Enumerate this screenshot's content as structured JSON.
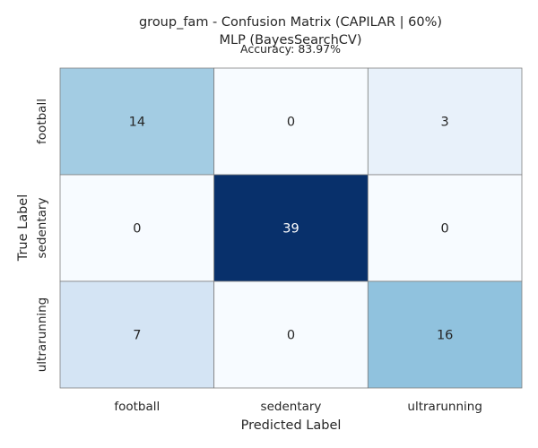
{
  "chart_data": {
    "type": "heatmap",
    "title": "group_fam - Confusion Matrix (CAPILAR | 60%)",
    "title_line2": "MLP (BayesSearchCV)",
    "subtitle": "Accuracy: 83.97%",
    "xlabel": "Predicted Label",
    "ylabel": "True Label",
    "x_categories": [
      "football",
      "sedentary",
      "ultrarunning"
    ],
    "y_categories": [
      "football",
      "sedentary",
      "ultrarunning"
    ],
    "values": [
      [
        14,
        0,
        3
      ],
      [
        0,
        39,
        0
      ],
      [
        7,
        0,
        16
      ]
    ],
    "colormap": "Blues",
    "grid": true,
    "colorbar": false
  },
  "colors": {
    "low": "#f7fbff",
    "high": "#08306b",
    "cell_border": "#808080",
    "text_dark": "#262626",
    "text_light": "#ffffff"
  }
}
